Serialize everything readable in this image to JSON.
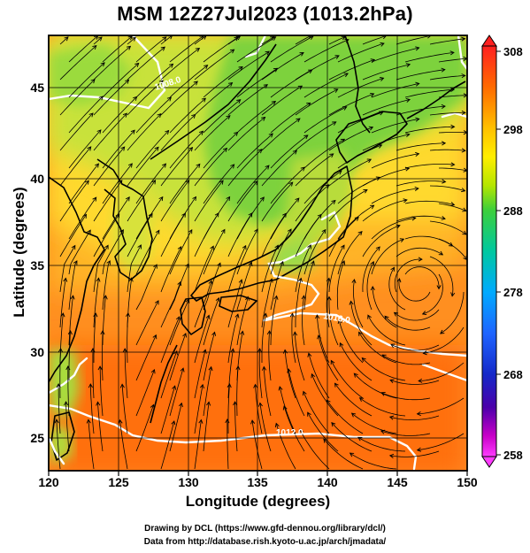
{
  "title": "MSM 12Z27Jul2023 (1013.2hPa)",
  "x_axis": {
    "label": "Longitude (degrees)",
    "ticks": [
      "120",
      "125",
      "130",
      "135",
      "140",
      "145",
      "150"
    ],
    "range": [
      120,
      150
    ]
  },
  "y_axis": {
    "label": "Latitude  (degrees)",
    "ticks": [
      "25",
      "30",
      "35",
      "40",
      "45"
    ],
    "range": [
      22.4,
      47.6
    ]
  },
  "colorbar": {
    "labels": [
      "308",
      "298",
      "288",
      "278",
      "268",
      "258"
    ],
    "min": 258,
    "max": 308,
    "colors_top_to_bottom": [
      "#ff1a1a",
      "#ff6a00",
      "#ffb000",
      "#ffe600",
      "#c8e600",
      "#4ed14e",
      "#00c8a0",
      "#00b4ff",
      "#1e6eff",
      "#1428c8",
      "#3c00a0",
      "#c800c8",
      "#ff3cff"
    ]
  },
  "contours": {
    "labels": [
      "1008.0",
      "1016.0",
      "1012.0"
    ]
  },
  "colors": {
    "ocean_warm": "#ff8a1c",
    "land_cool": "#7dd23c",
    "streamline": "#000000",
    "isobar": "#ffffff"
  },
  "credits": {
    "line1": "Drawing by DCL (https://www.gfd-dennou.org/library/dcl/)",
    "line2": "Data from http://database.rish.kyoto-u.ac.jp/arch/jmadata/"
  }
}
